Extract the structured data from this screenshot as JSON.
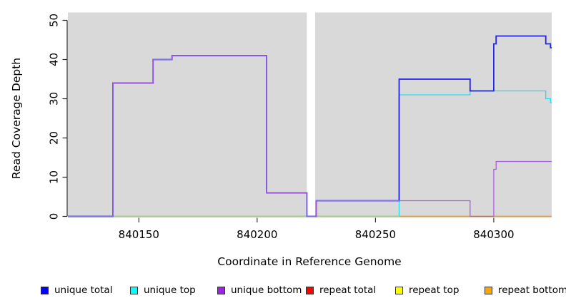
{
  "chart_data": {
    "type": "line",
    "subtype": "step-coverage",
    "title": "",
    "xlabel": "Coordinate in Reference Genome",
    "ylabel": "Read Coverage Depth",
    "xlim": [
      840120,
      840324.5
    ],
    "ylim": [
      0,
      50
    ],
    "x_ticks": [
      840150,
      840200,
      840250,
      840300
    ],
    "y_ticks": [
      0,
      10,
      20,
      30,
      40,
      50
    ],
    "grid": false,
    "plot_bg": "#d9d9d9",
    "panels": [
      [
        840120,
        840221
      ],
      [
        840224.5,
        840324.5
      ]
    ],
    "legend_position": "bottom",
    "series": [
      {
        "name": "unique total",
        "color": "#2222EE",
        "step_points": [
          [
            840120,
            0
          ],
          [
            840139,
            34
          ],
          [
            840156,
            40
          ],
          [
            840164,
            41
          ],
          [
            840204,
            6
          ],
          [
            840221,
            0
          ],
          [
            840225,
            4
          ],
          [
            840260,
            35
          ],
          [
            840290,
            32
          ],
          [
            840300,
            44
          ],
          [
            840301,
            46
          ],
          [
            840322,
            44
          ],
          [
            840324,
            43
          ]
        ]
      },
      {
        "name": "unique top",
        "color": "#22DDEE",
        "step_points": [
          [
            840120,
            0
          ],
          [
            840260,
            31
          ],
          [
            840290,
            32
          ],
          [
            840322,
            30
          ],
          [
            840324,
            29
          ]
        ]
      },
      {
        "name": "unique bottom",
        "color": "#A85FE0",
        "step_points": [
          [
            840120,
            0
          ],
          [
            840139,
            34
          ],
          [
            840156,
            40
          ],
          [
            840164,
            41
          ],
          [
            840204,
            6
          ],
          [
            840221,
            0
          ],
          [
            840225,
            4
          ],
          [
            840290,
            0
          ],
          [
            840300,
            12
          ],
          [
            840301,
            14
          ]
        ]
      },
      {
        "name": "repeat total",
        "color": "#EE2222",
        "step_points": [
          [
            840120,
            0
          ]
        ]
      },
      {
        "name": "repeat top",
        "color": "#F5F500",
        "step_points": [
          [
            840120,
            0
          ]
        ]
      },
      {
        "name": "repeat bottom",
        "color": "#FF9C00",
        "step_points": [
          [
            840120,
            0
          ]
        ]
      }
    ],
    "legend": [
      {
        "label": "unique total",
        "swatch": "#0000FF"
      },
      {
        "label": "unique top",
        "swatch": "#00FFFF"
      },
      {
        "label": "unique bottom",
        "swatch": "#A020F0"
      },
      {
        "label": "repeat total",
        "swatch": "#FF0000"
      },
      {
        "label": "repeat top",
        "swatch": "#FFFF00"
      },
      {
        "label": "repeat bottom",
        "swatch": "#FFA500"
      }
    ],
    "baseline_artifact": {
      "color": "#8FD890",
      "value": 0,
      "segments": [
        [
          840120,
          840221
        ],
        [
          840224.5,
          840260
        ]
      ]
    }
  }
}
